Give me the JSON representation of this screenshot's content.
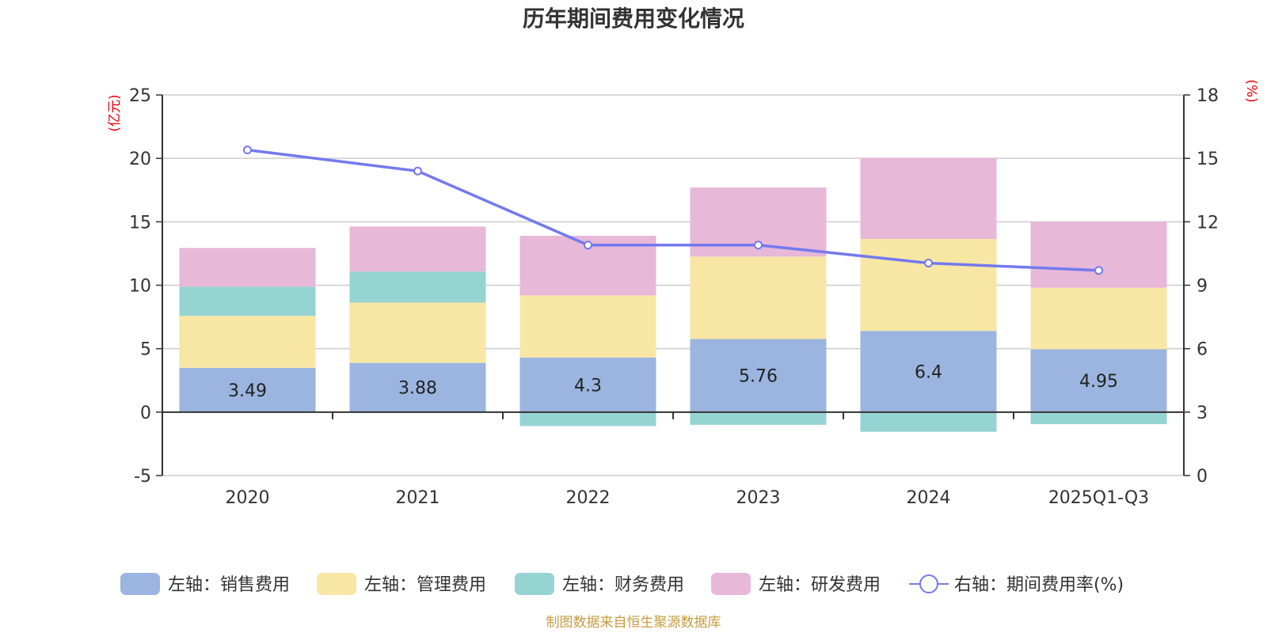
{
  "chart_data": {
    "type": "bar",
    "title": "历年期间费用变化情况",
    "left_axis_unit": "(亿元)",
    "right_axis_unit": "(%)",
    "categories": [
      "2020",
      "2021",
      "2022",
      "2023",
      "2024",
      "2025Q1-Q3"
    ],
    "left_axis": {
      "min": -5,
      "max": 25,
      "ticks": [
        "25",
        "20",
        "15",
        "10",
        "5",
        "0",
        "-5"
      ]
    },
    "right_axis": {
      "min": 0,
      "max": 18,
      "ticks": [
        "18",
        "15",
        "12",
        "9",
        "6",
        "3",
        "0"
      ]
    },
    "series": [
      {
        "name": "左轴：销售费用",
        "axis": "left",
        "kind": "bar",
        "color": "#9bb5e0",
        "values": [
          3.49,
          3.88,
          4.3,
          5.76,
          6.4,
          4.95
        ],
        "labels": [
          "3.49",
          "3.88",
          "4.3",
          "5.76",
          "6.4",
          "4.95"
        ]
      },
      {
        "name": "左轴：管理费用",
        "axis": "left",
        "kind": "bar",
        "color": "#f8e6a5",
        "values": [
          4.1,
          4.75,
          4.9,
          6.5,
          7.25,
          4.85
        ]
      },
      {
        "name": "左轴：财务费用",
        "axis": "left",
        "kind": "bar",
        "color": "#96d3d3",
        "values": [
          2.3,
          2.45,
          -1.1,
          -1.0,
          -1.55,
          -0.95
        ]
      },
      {
        "name": "左轴：研发费用",
        "axis": "left",
        "kind": "bar",
        "color": "#e7b8d8",
        "values": [
          3.05,
          3.55,
          4.7,
          5.45,
          6.4,
          5.2
        ]
      },
      {
        "name": "右轴：期间费用率(%)",
        "axis": "right",
        "kind": "line",
        "color": "#7479ee",
        "values": [
          15.4,
          14.4,
          10.9,
          10.9,
          10.05,
          9.7
        ]
      }
    ],
    "source": "制图数据来自恒生聚源数据库"
  }
}
